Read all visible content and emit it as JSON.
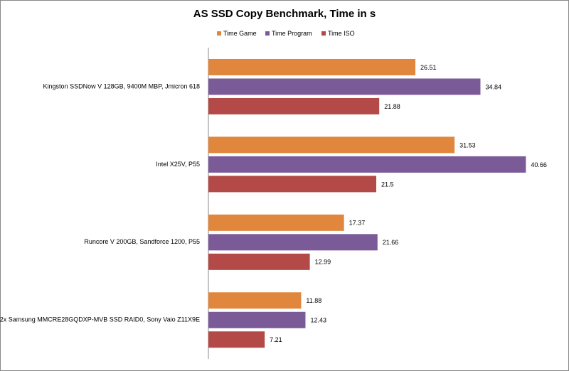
{
  "chart_data": {
    "type": "bar",
    "orientation": "horizontal",
    "title": "AS SSD Copy Benchmark, Time in s",
    "categories": [
      "Kingston SSDNow  V 128GB, 9400M MBP, Jmicron 618",
      "Intel X25V, P55",
      "Runcore V 200GB, Sandforce 1200, P55",
      "2x Samsung  MMCRE28GQDXP-MVB  SSD RAID0, Sony Vaio Z11X9E"
    ],
    "series": [
      {
        "name": "Time Game",
        "color": "#e0873d",
        "values": [
          26.51,
          31.53,
          17.37,
          11.88
        ]
      },
      {
        "name": "Time Program",
        "color": "#7b5a98",
        "values": [
          34.84,
          40.66,
          21.66,
          12.43
        ]
      },
      {
        "name": "Time ISO",
        "color": "#b34a48",
        "values": [
          21.88,
          21.5,
          12.99,
          7.21
        ]
      }
    ],
    "xlim": [
      0,
      45
    ],
    "legend": "top"
  }
}
